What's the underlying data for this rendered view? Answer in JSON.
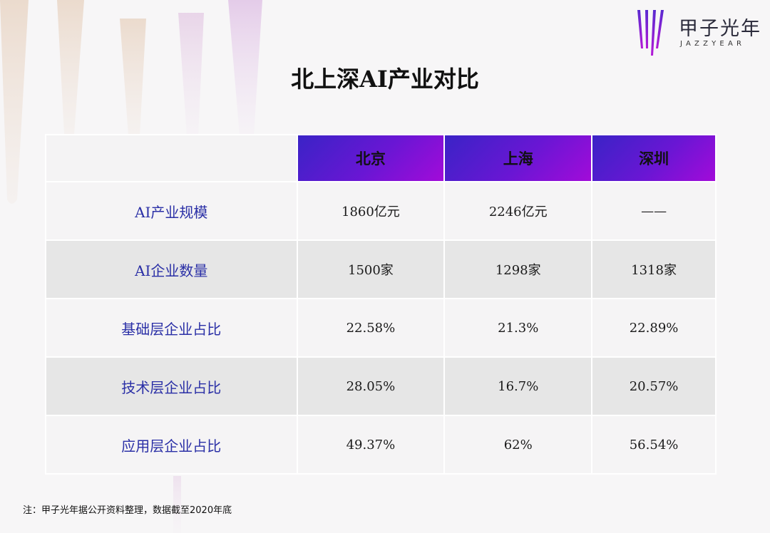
{
  "logo": {
    "name_cn": "甲子光年",
    "name_en": "JAZZYEAR"
  },
  "title": "北上深AI产业对比",
  "table": {
    "columns": [
      "北京",
      "上海",
      "深圳"
    ],
    "rows": [
      {
        "label": "AI产业规模",
        "values": [
          "1860亿元",
          "2246亿元",
          "——"
        ]
      },
      {
        "label": "AI企业数量",
        "values": [
          "1500家",
          "1298家",
          "1318家"
        ]
      },
      {
        "label": "基础层企业占比",
        "values": [
          "22.58%",
          "21.3%",
          "22.89%"
        ]
      },
      {
        "label": "技术层企业占比",
        "values": [
          "28.05%",
          "16.7%",
          "20.57%"
        ]
      },
      {
        "label": "应用层企业占比",
        "values": [
          "49.37%",
          "62%",
          "56.54%"
        ]
      }
    ]
  },
  "note": "注：甲子光年据公开资料整理，数据截至2020年底",
  "colors": {
    "header_gradient_start": "#3a23c6",
    "header_gradient_end": "#a20bd9",
    "row_label": "#2a2fa6"
  }
}
